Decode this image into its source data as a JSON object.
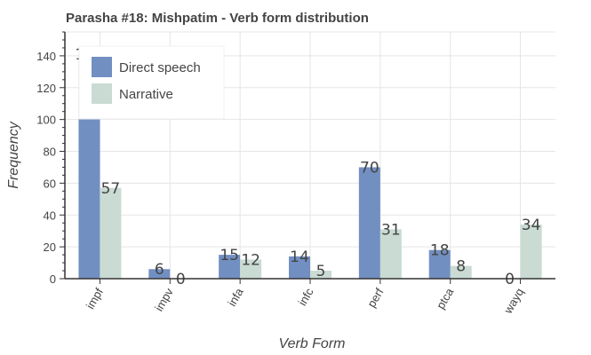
{
  "chart_data": {
    "type": "bar",
    "title": "Parasha #18: Mishpatim - Verb form distribution",
    "xlabel": "Verb Form",
    "ylabel": "Frequency",
    "categories": [
      "impf",
      "impv",
      "infa",
      "infc",
      "perf",
      "ptca",
      "wayq"
    ],
    "series": [
      {
        "name": "Direct speech",
        "values": [
          141,
          6,
          15,
          14,
          70,
          18,
          0
        ],
        "color": "#728fc2"
      },
      {
        "name": "Narrative",
        "values": [
          57,
          0,
          12,
          5,
          31,
          8,
          34
        ],
        "color": "#c9dbd3"
      }
    ],
    "ylim": [
      0,
      155
    ],
    "yticks": [
      0,
      20,
      40,
      60,
      80,
      100,
      120,
      140
    ],
    "grid": true,
    "legend": "top-left"
  }
}
